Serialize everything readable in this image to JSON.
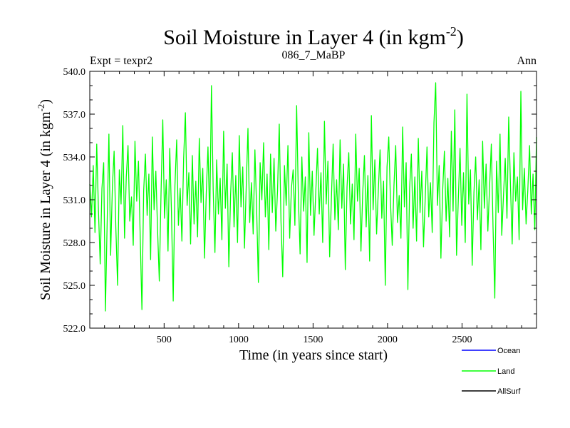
{
  "chart_data": {
    "type": "line",
    "title": "Soil Moisture in Layer 4 (in kgm",
    "title_superscript": "-2",
    "title_suffix": ")",
    "subtitle_left": "Expt = texpr2",
    "subtitle_center": "086_7_MaBP",
    "subtitle_right": "Ann",
    "xlabel": "Time (in years since start)",
    "ylabel": "Soil Moisture in Layer 4 (in kgm",
    "ylabel_superscript": "-2",
    "ylabel_suffix": ")",
    "xlim": [
      1,
      3000
    ],
    "ylim": [
      522.0,
      540.0
    ],
    "x_ticks": [
      500,
      1000,
      1500,
      2000,
      2500
    ],
    "x_tick_labels": [
      "500",
      "1000",
      "1500",
      "2000",
      "2500"
    ],
    "y_ticks": [
      522,
      525,
      528,
      531,
      534,
      537,
      540
    ],
    "y_tick_labels": [
      "522.0",
      "525.0",
      "528.0",
      "531.0",
      "534.0",
      "537.0",
      "540.0"
    ],
    "grid": false,
    "legend_position": "bottom-right, below plot",
    "series": [
      {
        "name": "Ocean",
        "color": "#0000ff",
        "x_range": [
          1,
          3000
        ],
        "values": []
      },
      {
        "name": "Land",
        "color": "#00ff00",
        "x_range": [
          1,
          3000
        ],
        "approx_mean": 531.5,
        "approx_min": 523.2,
        "approx_max": 539.2,
        "values": [
          532.1,
          529.8,
          533.4,
          528.7,
          534.9,
          530.2,
          526.5,
          531.8,
          533.6,
          523.2,
          529.4,
          535.6,
          527.1,
          531.9,
          534.4,
          529.0,
          525.0,
          533.1,
          530.7,
          536.2,
          528.3,
          532.6,
          534.8,
          529.5,
          531.2,
          527.8,
          535.1,
          530.9,
          533.7,
          528.5,
          523.3,
          531.6,
          534.2,
          529.9,
          532.8,
          526.8,
          535.4,
          530.3,
          533.0,
          528.9,
          525.3,
          531.5,
          536.6,
          529.7,
          532.4,
          527.4,
          534.6,
          530.1,
          523.9,
          532.0,
          535.2,
          529.2,
          531.8,
          528.1,
          533.9,
          537.1,
          530.6,
          532.9,
          527.9,
          534.1,
          529.3,
          532.3,
          528.4,
          535.3,
          530.8,
          533.2,
          526.9,
          531.4,
          534.7,
          529.6,
          539.0,
          531.7,
          527.3,
          533.8,
          530.0,
          532.5,
          528.2,
          535.8,
          530.4,
          533.5,
          526.3,
          531.3,
          534.3,
          529.1,
          532.7,
          528.0,
          535.5,
          530.5,
          533.3,
          527.6,
          531.9,
          536.0,
          529.4,
          532.2,
          528.6,
          534.5,
          530.3,
          525.2,
          533.6,
          531.0,
          535.0,
          529.8,
          532.8,
          527.5,
          534.2,
          530.1,
          533.9,
          528.8,
          531.6,
          536.3,
          529.5,
          525.6,
          533.4,
          530.6,
          534.8,
          528.3,
          531.8,
          533.1,
          529.2,
          537.6,
          531.2,
          527.2,
          534.0,
          530.2,
          532.6,
          526.6,
          535.7,
          529.9,
          533.0,
          528.5,
          531.5,
          534.6,
          530.0,
          532.9,
          528.0,
          536.5,
          530.7,
          533.7,
          527.0,
          531.1,
          534.9,
          529.6,
          532.4,
          528.9,
          535.2,
          530.4,
          533.5,
          526.1,
          531.9,
          534.3,
          529.3,
          532.1,
          528.2,
          535.6,
          530.9,
          533.2,
          527.4,
          531.4,
          534.1,
          529.1,
          532.7,
          526.7,
          536.9,
          530.3,
          533.8,
          528.6,
          531.7,
          534.5,
          529.7,
          532.3,
          525.0,
          533.3,
          535.4,
          530.8,
          527.8,
          532.0,
          534.8,
          529.4,
          531.3,
          528.3,
          536.1,
          530.5,
          533.6,
          524.7,
          531.8,
          534.2,
          529.0,
          532.6,
          528.1,
          535.3,
          530.1,
          533.0,
          527.7,
          531.2,
          534.7,
          529.8,
          532.2,
          528.7,
          536.4,
          539.2,
          530.6,
          533.4,
          526.9,
          531.6,
          534.4,
          529.5,
          532.5,
          528.4,
          535.8,
          530.2,
          537.3,
          527.1,
          531.0,
          534.6,
          529.2,
          532.9,
          528.0,
          538.4,
          530.7,
          533.1,
          526.4,
          531.5,
          534.0,
          529.6,
          532.4,
          527.5,
          535.1,
          530.4,
          533.5,
          528.8,
          531.9,
          534.9,
          529.0,
          524.1,
          533.7,
          530.1,
          535.6,
          528.5,
          531.3,
          533.9,
          529.7,
          536.8,
          532.1,
          527.9,
          534.3,
          530.9,
          532.6,
          528.2,
          538.6,
          530.3,
          533.2,
          529.3,
          531.7,
          534.8,
          530.0,
          532.8,
          528.9,
          535.4
        ]
      },
      {
        "name": "AllSurf",
        "color": "#000000",
        "x_range": [
          1,
          3000
        ],
        "values": []
      }
    ]
  }
}
